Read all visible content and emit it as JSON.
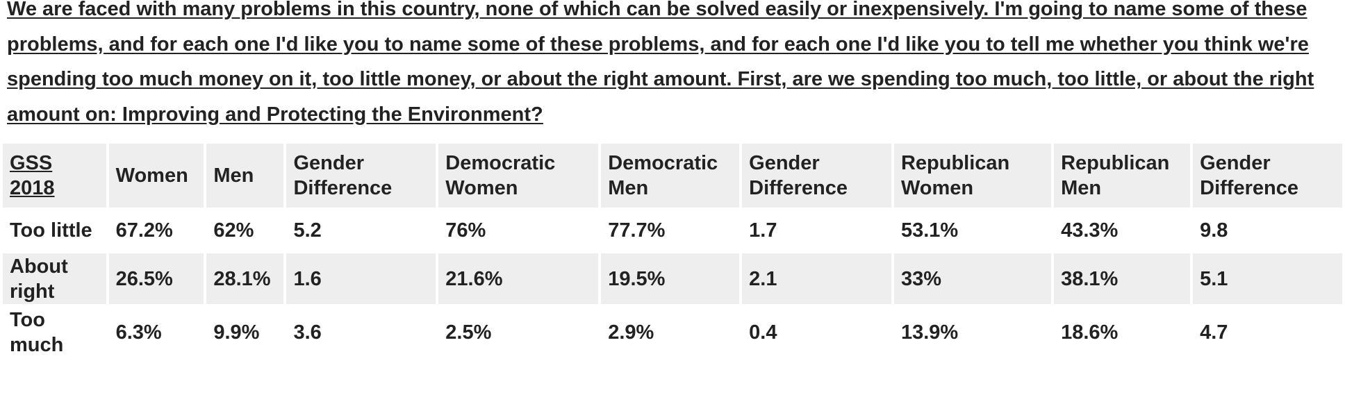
{
  "question": "We are faced with many problems in this country, none of which can be solved easily or inexpensively. I'm going to name some of these problems, and for each one I'd like you to name some of these problems, and for each one I'd like you to tell me whether you think we're spending too much money on it, too little money, or about the right amount. First, are we spending too much, too little, or about the right amount on: Improving and Protecting the Environment?",
  "table": {
    "headers": {
      "survey": "GSS 2018",
      "women": "Women",
      "men": "Men",
      "gender_diff_1": "Gender Difference",
      "dem_women": "Democratic Women",
      "dem_men": "Democratic Men",
      "gender_diff_2": "Gender Difference",
      "rep_women": "Republican Women",
      "rep_men": "Republican Men",
      "gender_diff_3": "Gender Difference"
    },
    "rows": [
      {
        "label": "Too little",
        "women": "67.2%",
        "men": "62%",
        "gender_diff_1": "5.2",
        "dem_women": "76%",
        "dem_men": "77.7%",
        "gender_diff_2": "1.7",
        "rep_women": "53.1%",
        "rep_men": "43.3%",
        "gender_diff_3": "9.8"
      },
      {
        "label": "About right",
        "women": "26.5%",
        "men": "28.1%",
        "gender_diff_1": "1.6",
        "dem_women": "21.6%",
        "dem_men": "19.5%",
        "gender_diff_2": "2.1",
        "rep_women": "33%",
        "rep_men": "38.1%",
        "gender_diff_3": "5.1"
      },
      {
        "label": "Too much",
        "women": "6.3%",
        "men": "9.9%",
        "gender_diff_1": "3.6",
        "dem_women": "2.5%",
        "dem_men": "2.9%",
        "gender_diff_2": "0.4",
        "rep_women": "13.9%",
        "rep_men": "18.6%",
        "gender_diff_3": "4.7"
      }
    ]
  },
  "colors": {
    "text": "#222222",
    "header_bg": "#eeeeee",
    "alt_row_bg": "#eeeeee",
    "row_bg": "#ffffff"
  }
}
